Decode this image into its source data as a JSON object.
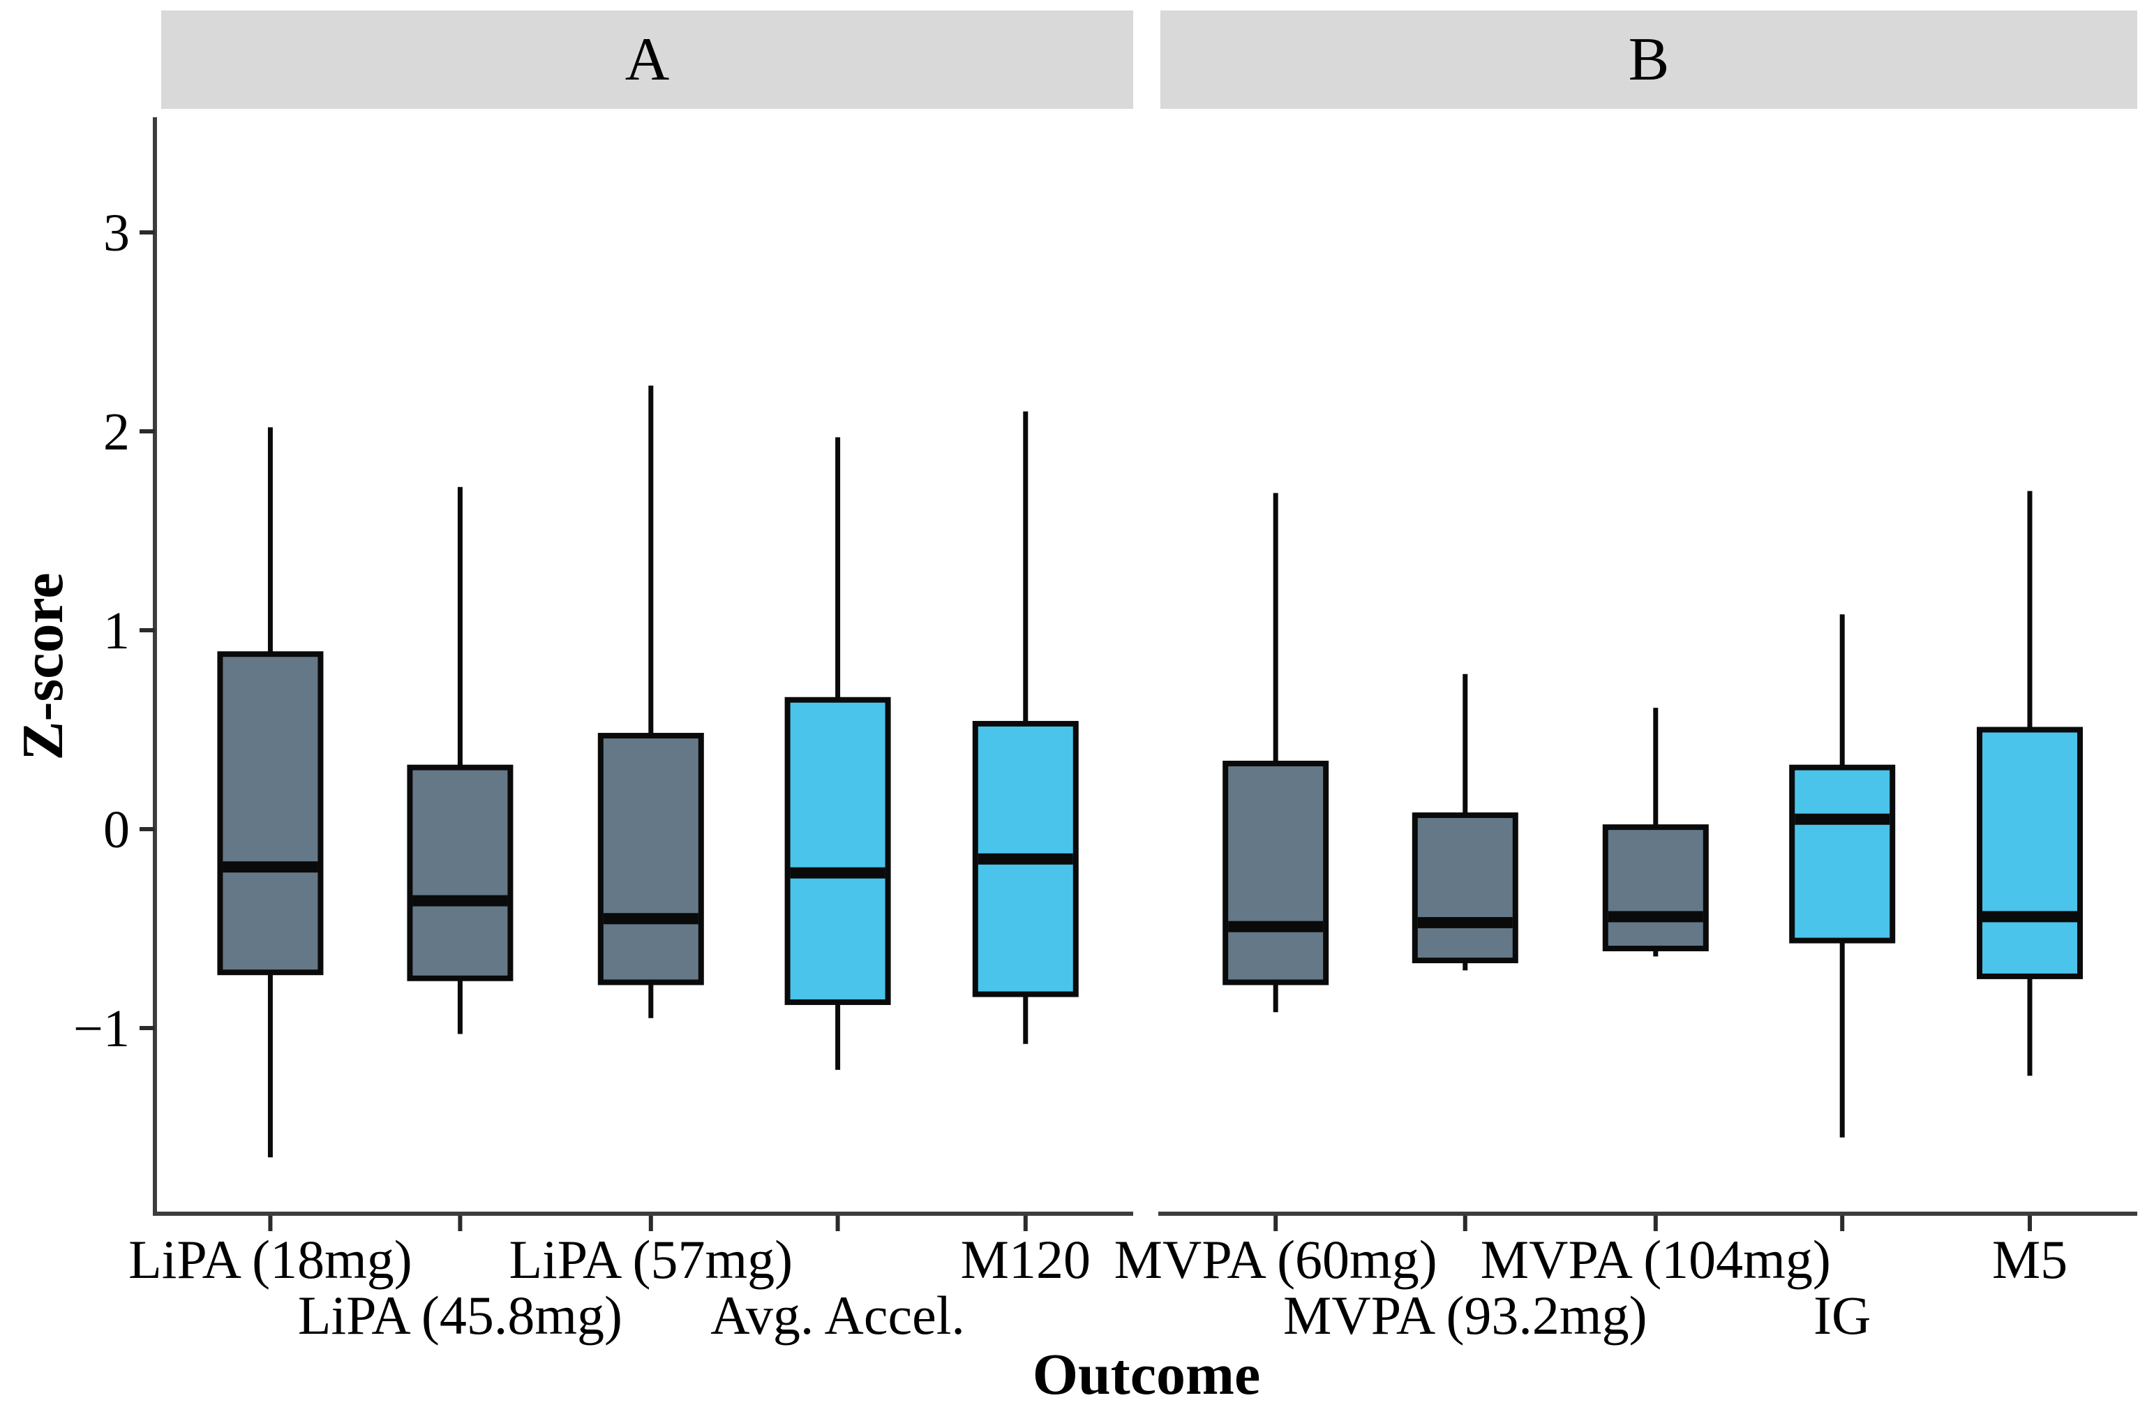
{
  "figure": {
    "y_axis_title": "Z-score",
    "x_axis_title": "Outcome"
  },
  "colors": {
    "dark_fill": "#647887",
    "light_fill": "#4AC4EA",
    "box_stroke": "#0a0a0a",
    "median_color": "#0a0a0a",
    "whisker_color": "#0a0a0a",
    "axis_line": "#3d3d3d",
    "tick_color": "#2b2b2b",
    "strip_bg": "#d9d9d9",
    "strip_text": "#000000",
    "background": "#ffffff"
  },
  "chart_data": {
    "type": "boxplot",
    "title": "",
    "xlabel": "Outcome",
    "ylabel": "Z-score",
    "ylim": [
      -1.95,
      3.6
    ],
    "yticks": [
      3,
      2,
      1,
      0,
      -1
    ],
    "grid": false,
    "legend": "none",
    "panels": [
      {
        "label": "A",
        "boxes": [
          {
            "category": "LiPA (18mg)",
            "label_row": 1,
            "color": "dark",
            "whisker_low": -1.65,
            "q1": -0.72,
            "median": -0.19,
            "q3": 0.88,
            "whisker_high": 2.02
          },
          {
            "category": "LiPA (45.8mg)",
            "label_row": 2,
            "color": "dark",
            "whisker_low": -1.03,
            "q1": -0.75,
            "median": -0.36,
            "q3": 0.31,
            "whisker_high": 1.72
          },
          {
            "category": "LiPA (57mg)",
            "label_row": 1,
            "color": "dark",
            "whisker_low": -0.95,
            "q1": -0.77,
            "median": -0.45,
            "q3": 0.47,
            "whisker_high": 2.23
          },
          {
            "category": "Avg. Accel.",
            "label_row": 2,
            "color": "light",
            "whisker_low": -1.21,
            "q1": -0.87,
            "median": -0.22,
            "q3": 0.65,
            "whisker_high": 1.97
          },
          {
            "category": "M120",
            "label_row": 1,
            "color": "light",
            "whisker_low": -1.08,
            "q1": -0.83,
            "median": -0.15,
            "q3": 0.53,
            "whisker_high": 2.1
          }
        ]
      },
      {
        "label": "B",
        "boxes": [
          {
            "category": "MVPA (60mg)",
            "label_row": 1,
            "color": "dark",
            "whisker_low": -0.92,
            "q1": -0.77,
            "median": -0.49,
            "q3": 0.33,
            "whisker_high": 1.69
          },
          {
            "category": "MVPA (93.2mg)",
            "label_row": 2,
            "color": "dark",
            "whisker_low": -0.71,
            "q1": -0.66,
            "median": -0.47,
            "q3": 0.07,
            "whisker_high": 0.78
          },
          {
            "category": "MVPA (104mg)",
            "label_row": 1,
            "color": "dark",
            "whisker_low": -0.64,
            "q1": -0.6,
            "median": -0.44,
            "q3": 0.01,
            "whisker_high": 0.61
          },
          {
            "category": "IG",
            "label_row": 2,
            "color": "light",
            "whisker_low": -1.55,
            "q1": -0.56,
            "median": 0.05,
            "q3": 0.31,
            "whisker_high": 1.08
          },
          {
            "category": "M5",
            "label_row": 1,
            "color": "light",
            "whisker_low": -1.24,
            "q1": -0.74,
            "median": -0.44,
            "q3": 0.5,
            "whisker_high": 1.7
          }
        ]
      }
    ]
  }
}
